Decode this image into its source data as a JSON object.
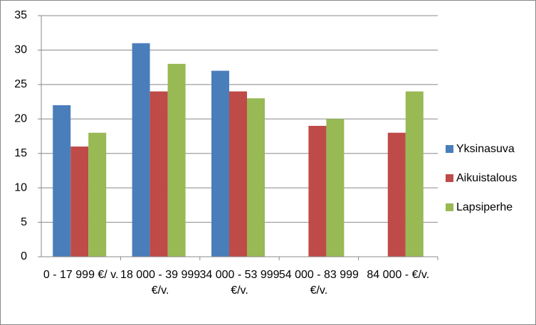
{
  "chart_data": {
    "type": "bar",
    "categories": [
      "0 - 17 999 €/ v.",
      "18 000 - 39 999 €/v.",
      "34 000 - 53 999 €/v.",
      "54 000 - 83 999 €/v.",
      "84 000 - €/v."
    ],
    "series": [
      {
        "name": "Yksinasuva",
        "color": "#4a7ebb",
        "values": [
          22,
          31,
          27,
          null,
          null
        ]
      },
      {
        "name": "Aikuistalous",
        "color": "#be4b48",
        "values": [
          16,
          24,
          24,
          19,
          18
        ]
      },
      {
        "name": "Lapsiperhe",
        "color": "#98b954",
        "values": [
          18,
          28,
          23,
          20,
          24
        ]
      }
    ],
    "ylim": [
      0,
      35
    ],
    "yticks": [
      0,
      5,
      10,
      15,
      20,
      25,
      30,
      35
    ],
    "grid": true,
    "legend": "right"
  }
}
